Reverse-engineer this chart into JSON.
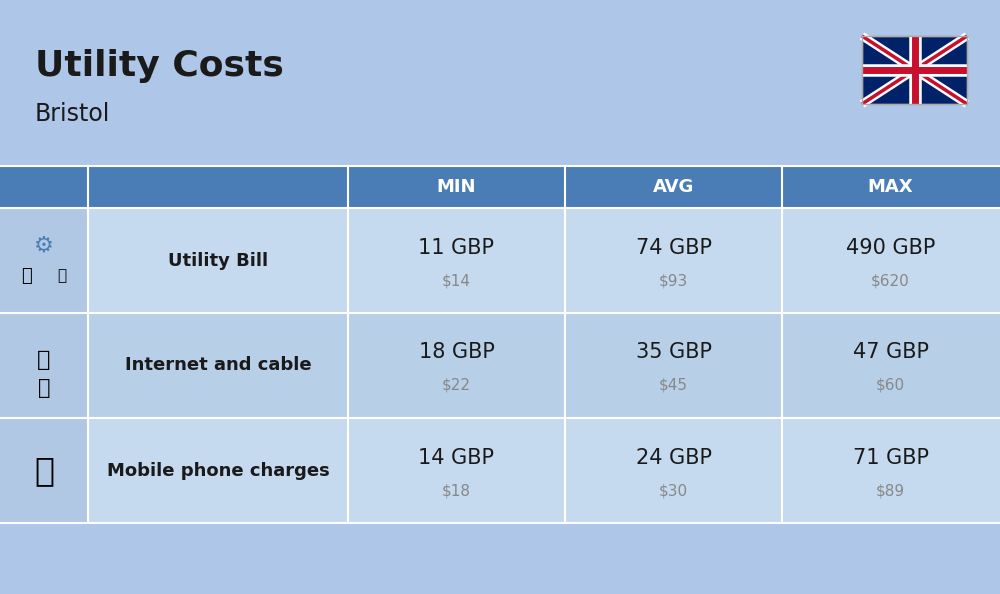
{
  "title": "Utility Costs",
  "subtitle": "Bristol",
  "background_color": "#aec6e8",
  "header_color": "#4a7db5",
  "header_text_color": "#ffffff",
  "row_colors": [
    "#c5d9ef",
    "#b8cfe8"
  ],
  "icon_col_color": "#b0c8e4",
  "text_color": "#1a1a1a",
  "usd_color": "#888888",
  "col_headers": [
    "MIN",
    "AVG",
    "MAX"
  ],
  "rows": [
    {
      "label": "Utility Bill",
      "icon": "utility",
      "min_gbp": "11 GBP",
      "min_usd": "$14",
      "avg_gbp": "74 GBP",
      "avg_usd": "$93",
      "max_gbp": "490 GBP",
      "max_usd": "$620"
    },
    {
      "label": "Internet and cable",
      "icon": "internet",
      "min_gbp": "18 GBP",
      "min_usd": "$22",
      "avg_gbp": "35 GBP",
      "avg_usd": "$45",
      "max_gbp": "47 GBP",
      "max_usd": "$60"
    },
    {
      "label": "Mobile phone charges",
      "icon": "mobile",
      "min_gbp": "14 GBP",
      "min_usd": "$18",
      "avg_gbp": "24 GBP",
      "avg_usd": "$30",
      "max_gbp": "71 GBP",
      "max_usd": "$89"
    }
  ],
  "title_fontsize": 26,
  "subtitle_fontsize": 17,
  "header_fontsize": 13,
  "label_fontsize": 13,
  "value_fontsize": 15,
  "usd_fontsize": 11
}
